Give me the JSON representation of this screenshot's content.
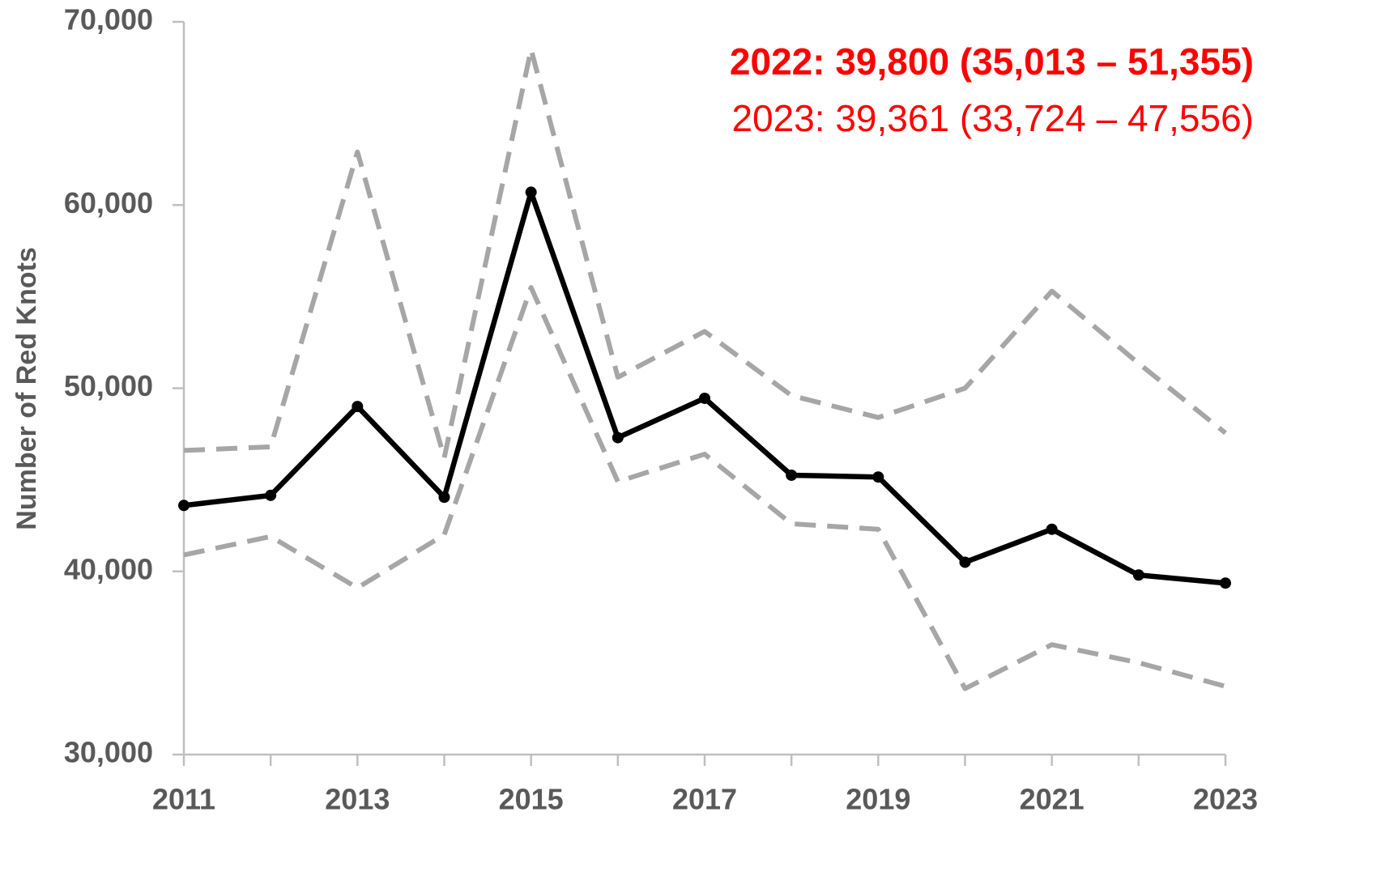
{
  "chart_data": {
    "type": "line",
    "y_label": "Number of Red Knots",
    "annotations": [
      {
        "text": "2022: 39,800 (35,013 – 51,355)",
        "bold": true,
        "color": "#ff0000"
      },
      {
        "text": "2023: 39,361 (33,724 – 47,556)",
        "bold": false,
        "color": "#ff0000"
      }
    ],
    "x": [
      2011,
      2012,
      2013,
      2014,
      2015,
      2016,
      2017,
      2018,
      2019,
      2020,
      2021,
      2022,
      2023
    ],
    "series": [
      {
        "color": "#000000",
        "dashed": false,
        "markers": true,
        "values": [
          43600,
          44150,
          49000,
          44050,
          60700,
          47300,
          49450,
          45250,
          45150,
          40500,
          42300,
          39800,
          39361
        ]
      },
      {
        "color": "#a6a6a6",
        "dashed": true,
        "markers": false,
        "values": [
          46600,
          46800,
          62900,
          46200,
          68500,
          50600,
          53100,
          49600,
          48400,
          50000,
          55300,
          51355,
          47556
        ]
      },
      {
        "color": "#a6a6a6",
        "dashed": true,
        "markers": false,
        "values": [
          40900,
          41900,
          39100,
          42000,
          55500,
          44900,
          46400,
          42600,
          42300,
          33600,
          36000,
          35013,
          33724
        ]
      }
    ],
    "xlim": [
      2011,
      2023
    ],
    "xticks": [
      2011,
      2013,
      2015,
      2017,
      2019,
      2021,
      2023
    ],
    "ylim": [
      30000,
      70000
    ],
    "yticks": [
      {
        "value": 30000,
        "label": "30,000"
      },
      {
        "value": 40000,
        "label": "40,000"
      },
      {
        "value": 50000,
        "label": "50,000"
      },
      {
        "value": 60000,
        "label": "60,000"
      },
      {
        "value": 70000,
        "label": "70,000"
      }
    ],
    "grid": false
  }
}
